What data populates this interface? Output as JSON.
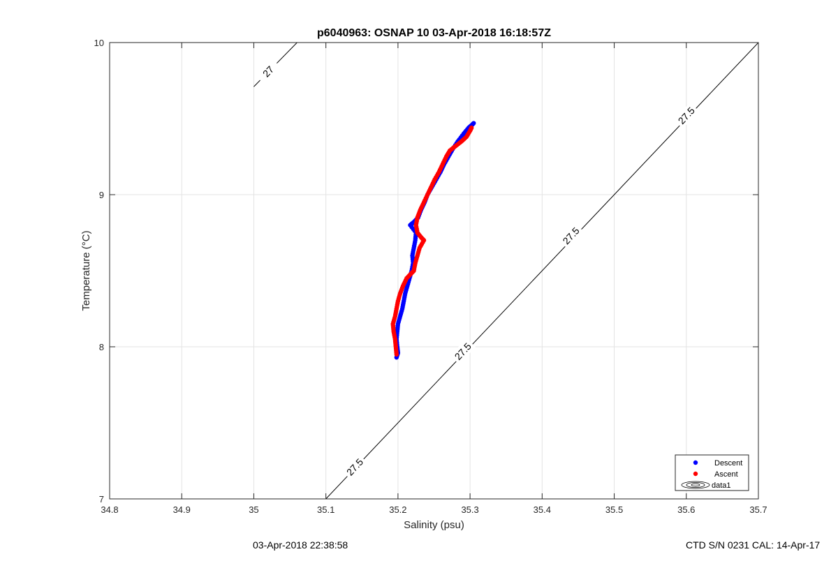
{
  "chart_data": {
    "type": "scatter",
    "title": "p6040963: OSNAP 10 03-Apr-2018 16:18:57Z",
    "xlabel": "Salinity (psu)",
    "ylabel": "Temperature (°C)",
    "xlim": [
      34.8,
      35.7
    ],
    "ylim": [
      7,
      10
    ],
    "xticks": [
      "34.8",
      "34.9",
      "35",
      "35.1",
      "35.2",
      "35.3",
      "35.4",
      "35.5",
      "35.6",
      "35.7"
    ],
    "yticks": [
      "7",
      "8",
      "9",
      "10"
    ],
    "grid": true,
    "legend_position": "bottom-right",
    "legend": [
      {
        "label": "Descent",
        "color": "#0000ff",
        "marker": "circle"
      },
      {
        "label": "Ascent",
        "color": "#ff0000",
        "marker": "circle"
      },
      {
        "label": "data1",
        "color": "#000000",
        "marker": "contour"
      }
    ],
    "series": [
      {
        "name": "Descent",
        "color": "#0000ff",
        "points": [
          [
            35.198,
            7.93
          ],
          [
            35.2,
            7.96
          ],
          [
            35.199,
            8.0
          ],
          [
            35.198,
            8.05
          ],
          [
            35.199,
            8.1
          ],
          [
            35.2,
            8.15
          ],
          [
            35.203,
            8.2
          ],
          [
            35.206,
            8.25
          ],
          [
            35.208,
            8.3
          ],
          [
            35.21,
            8.35
          ],
          [
            35.213,
            8.4
          ],
          [
            35.216,
            8.45
          ],
          [
            35.219,
            8.5
          ],
          [
            35.221,
            8.55
          ],
          [
            35.22,
            8.6
          ],
          [
            35.222,
            8.65
          ],
          [
            35.224,
            8.7
          ],
          [
            35.225,
            8.75
          ],
          [
            35.217,
            8.8
          ],
          [
            35.222,
            8.82
          ],
          [
            35.228,
            8.85
          ],
          [
            35.232,
            8.9
          ],
          [
            35.237,
            8.95
          ],
          [
            35.241,
            9.0
          ],
          [
            35.247,
            9.05
          ],
          [
            35.253,
            9.1
          ],
          [
            35.259,
            9.15
          ],
          [
            35.264,
            9.2
          ],
          [
            35.27,
            9.25
          ],
          [
            35.276,
            9.3
          ],
          [
            35.283,
            9.35
          ],
          [
            35.291,
            9.4
          ],
          [
            35.298,
            9.44
          ],
          [
            35.303,
            9.46
          ],
          [
            35.305,
            9.47
          ]
        ]
      },
      {
        "name": "Ascent",
        "color": "#ff0000",
        "points": [
          [
            35.198,
            7.95
          ],
          [
            35.197,
            8.0
          ],
          [
            35.196,
            8.05
          ],
          [
            35.194,
            8.1
          ],
          [
            35.193,
            8.15
          ],
          [
            35.196,
            8.2
          ],
          [
            35.198,
            8.25
          ],
          [
            35.2,
            8.3
          ],
          [
            35.203,
            8.35
          ],
          [
            35.207,
            8.4
          ],
          [
            35.212,
            8.45
          ],
          [
            35.218,
            8.48
          ],
          [
            35.222,
            8.5
          ],
          [
            35.224,
            8.55
          ],
          [
            35.227,
            8.6
          ],
          [
            35.23,
            8.65
          ],
          [
            35.236,
            8.7
          ],
          [
            35.232,
            8.72
          ],
          [
            35.227,
            8.75
          ],
          [
            35.225,
            8.8
          ],
          [
            35.227,
            8.85
          ],
          [
            35.231,
            8.9
          ],
          [
            35.236,
            8.95
          ],
          [
            35.241,
            9.0
          ],
          [
            35.246,
            9.05
          ],
          [
            35.251,
            9.1
          ],
          [
            35.257,
            9.15
          ],
          [
            35.262,
            9.2
          ],
          [
            35.267,
            9.25
          ],
          [
            35.272,
            9.29
          ],
          [
            35.28,
            9.32
          ],
          [
            35.288,
            9.35
          ],
          [
            35.295,
            9.38
          ],
          [
            35.3,
            9.42
          ],
          [
            35.302,
            9.44
          ]
        ]
      }
    ],
    "isopycnals": [
      {
        "label": "27",
        "from": [
          35.0,
          9.71
        ],
        "to": [
          35.06,
          10.0
        ]
      },
      {
        "label": "27.5",
        "from": [
          35.1,
          7.0
        ],
        "to": [
          35.7,
          10.0
        ]
      }
    ],
    "isopycnal_labels": [
      {
        "text": "27",
        "at": [
          35.02,
          9.81
        ]
      },
      {
        "text": "27.5",
        "at": [
          35.14,
          7.21
        ]
      },
      {
        "text": "27.5",
        "at": [
          35.29,
          7.97
        ]
      },
      {
        "text": "27.5",
        "at": [
          35.44,
          8.73
        ]
      },
      {
        "text": "27.5",
        "at": [
          35.6,
          9.52
        ]
      }
    ]
  },
  "footer": {
    "date": "03-Apr-2018 22:38:58",
    "calibration": "CTD S/N 0231  CAL: 14-Apr-17"
  }
}
